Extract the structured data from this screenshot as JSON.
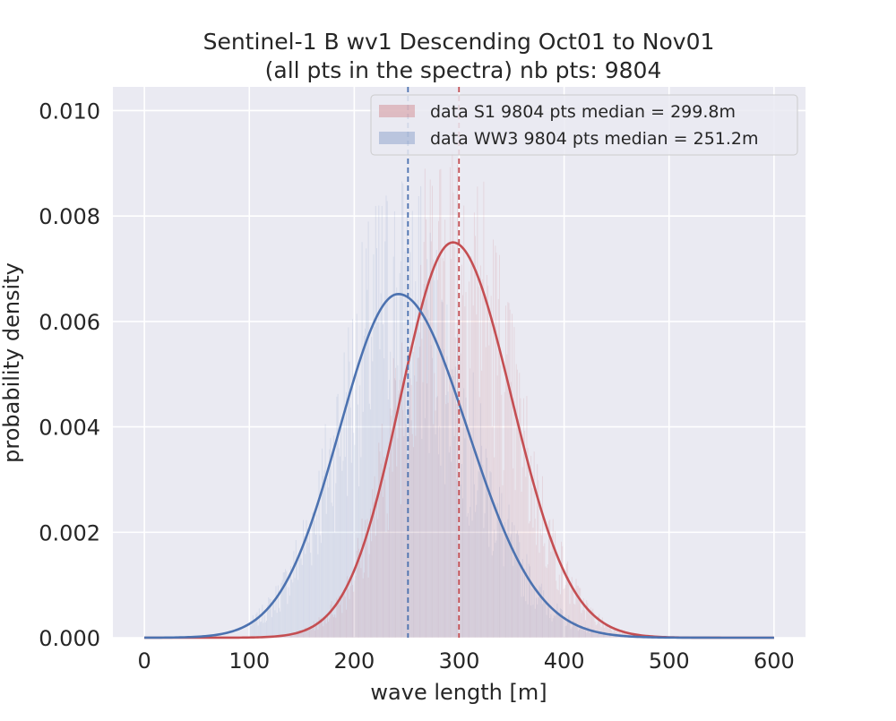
{
  "chart_data": {
    "type": "histogram",
    "title_line1": "Sentinel-1 B wv1 Descending Oct01 to Nov01",
    "title_line2": "(all pts in the spectra) nb pts: 9804",
    "xlabel": "wave length [m]",
    "ylabel": "probability density",
    "xlim": [
      -30,
      630
    ],
    "ylim": [
      0,
      0.01045
    ],
    "xticks": [
      0,
      100,
      200,
      300,
      400,
      500,
      600
    ],
    "xtick_labels": [
      "0",
      "100",
      "200",
      "300",
      "400",
      "500",
      "600"
    ],
    "yticks": [
      0,
      0.002,
      0.004,
      0.006,
      0.008,
      0.01
    ],
    "ytick_labels": [
      "0.000",
      "0.002",
      "0.004",
      "0.006",
      "0.008",
      "0.010"
    ],
    "grid": true,
    "legend_position": "top-right",
    "series": [
      {
        "name": "data S1 9804 pts median = 299.8m",
        "color": "#c44e52",
        "median": 299.8,
        "fit_mean": 294,
        "fit_peak": 0.0075,
        "fit_sd_left": 50,
        "fit_sd_right": 56
      },
      {
        "name": "data WW3 9804 pts median = 251.2m",
        "color": "#4c72b0",
        "median": 251.2,
        "fit_mean": 242,
        "fit_peak": 0.00652,
        "fit_sd_left": 56,
        "fit_sd_right": 66
      }
    ]
  }
}
